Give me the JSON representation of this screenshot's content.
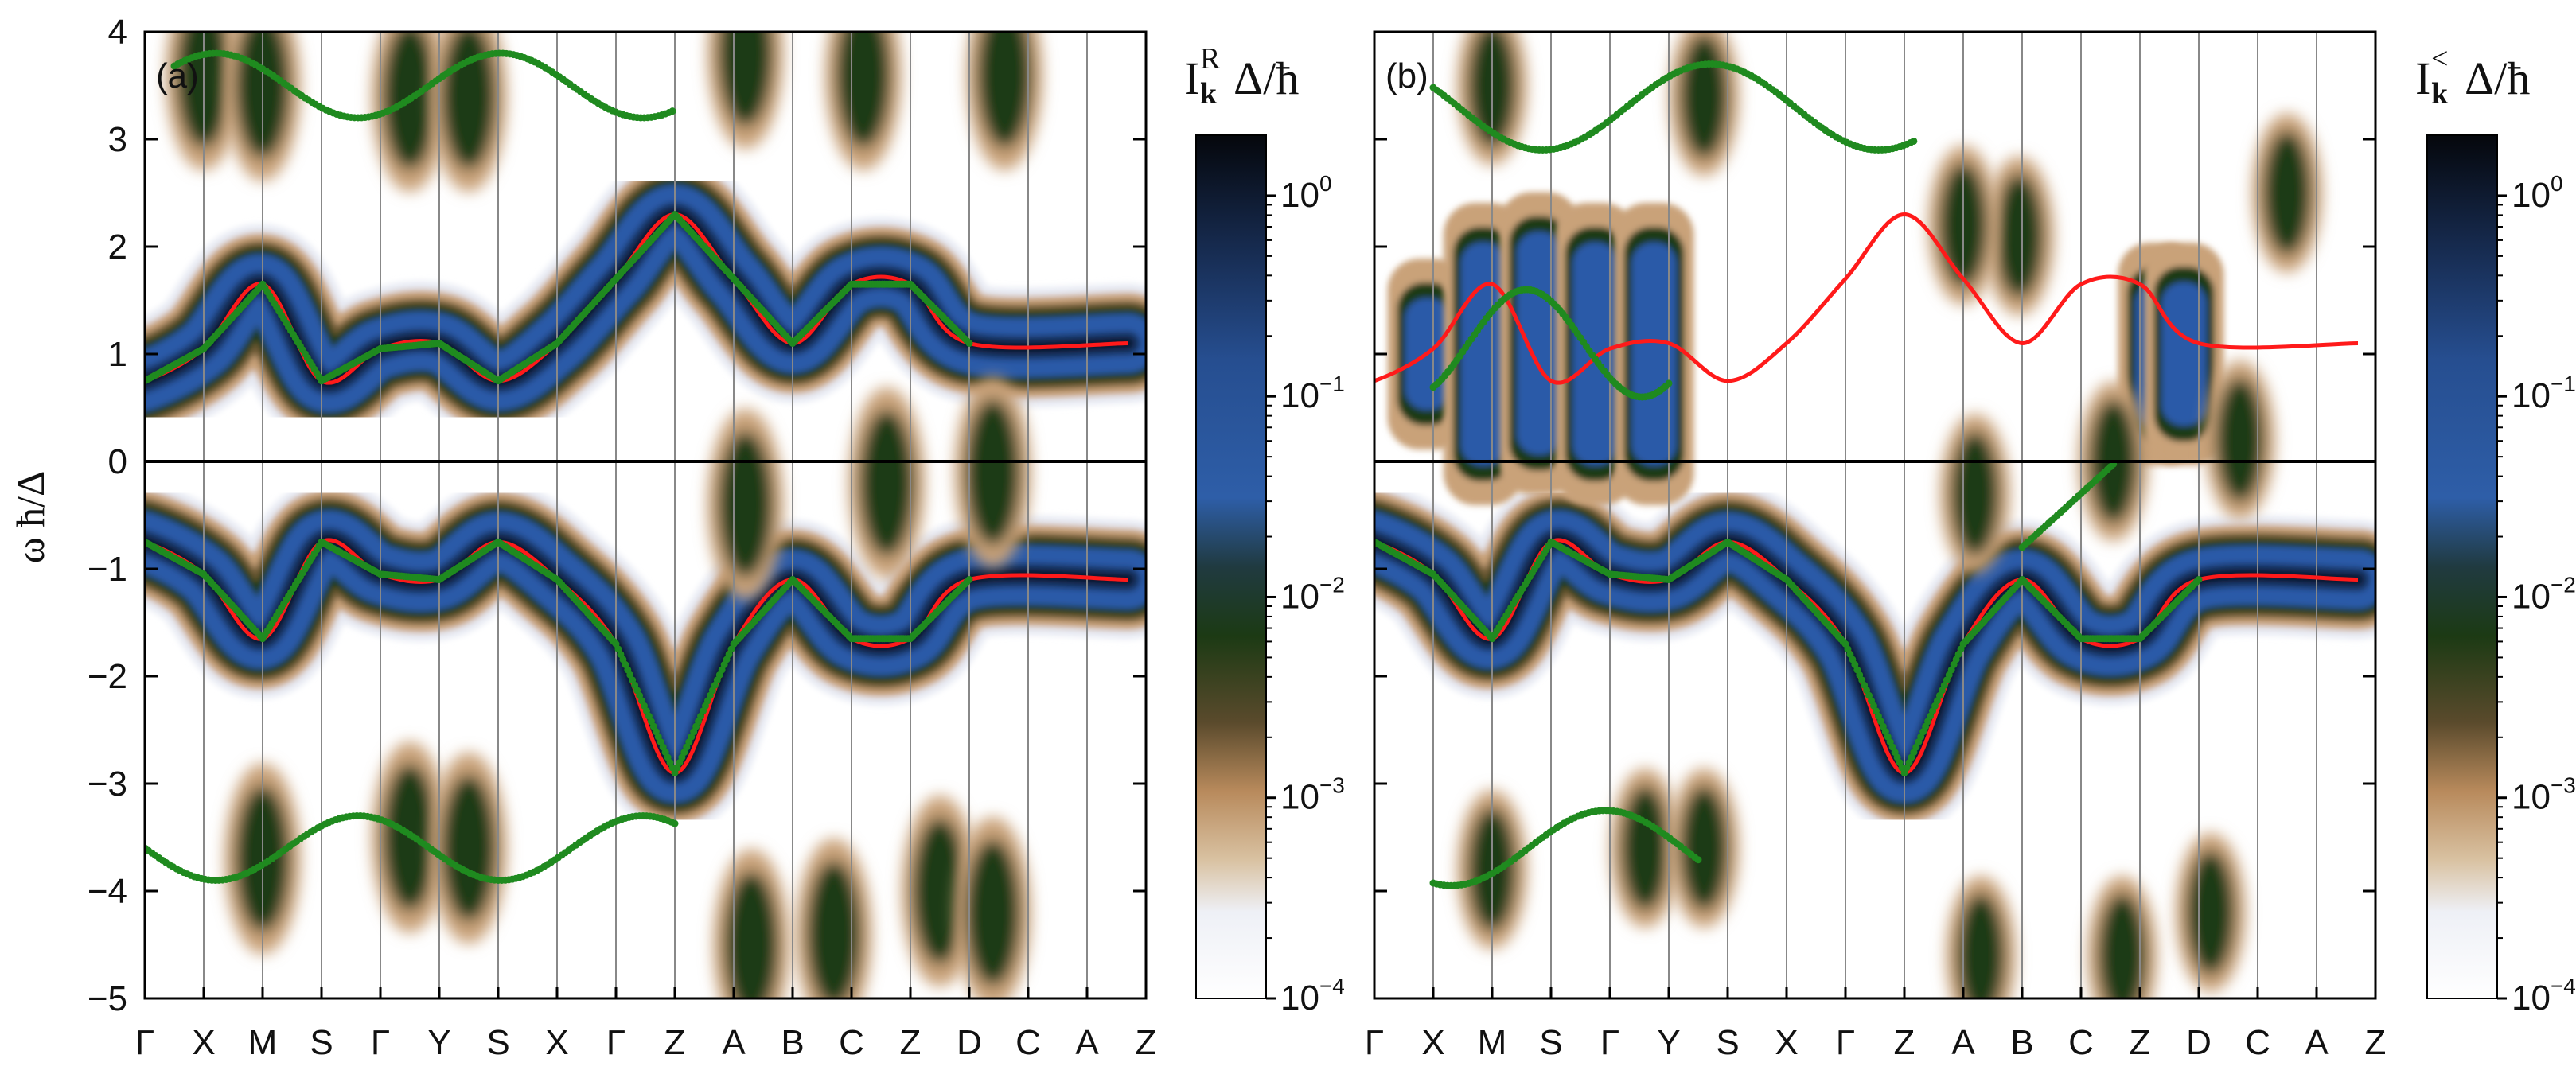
{
  "chart_data": {
    "type": "heatmap",
    "ylabel": "ω ħ/Δ",
    "ylim": [
      -5,
      4
    ],
    "yticks": [
      "4",
      "3",
      "2",
      "1",
      "0",
      "-1",
      "-2",
      "-3",
      "-4",
      "-5"
    ],
    "kpath": [
      "Γ",
      "X",
      "M",
      "S",
      "Γ",
      "Y",
      "S",
      "X",
      "Γ",
      "Z",
      "A",
      "B",
      "C",
      "Z",
      "D",
      "C",
      "A",
      "Z"
    ],
    "panels": [
      {
        "id": "a",
        "label": "(a)",
        "colorbar_title_main": "I",
        "colorbar_title_sub": "k",
        "colorbar_title_sup": "R",
        "colorbar_title_tail": "Δ/ħ",
        "zlim": [
          0.0001,
          2
        ],
        "zscale": "log",
        "colorbar_ticks": [
          {
            "mant": "10",
            "exp": "0",
            "value": 1
          },
          {
            "mant": "10",
            "exp": "-1",
            "value": 0.1
          },
          {
            "mant": "10",
            "exp": "-2",
            "value": 0.01
          },
          {
            "mant": "10",
            "exp": "-3",
            "value": 0.001
          },
          {
            "mant": "10",
            "exp": "-4",
            "value": 0.0001
          }
        ],
        "red_bands": [
          [
            0.75,
            1.05,
            1.65,
            0.75,
            1.05,
            1.1,
            0.75,
            1.1,
            1.7,
            2.3,
            1.7,
            1.1,
            1.65,
            1.65,
            1.1
          ],
          [
            -0.75,
            -1.05,
            -1.65,
            -0.75,
            -1.05,
            -1.1,
            -0.75,
            -1.1,
            -1.7,
            -2.9,
            -1.7,
            -1.1,
            -1.65,
            -1.65,
            -1.1
          ]
        ]
      },
      {
        "id": "b",
        "label": "(b)",
        "colorbar_title_main": "I",
        "colorbar_title_sub": "k",
        "colorbar_title_sup": "<",
        "colorbar_title_tail": "Δ/ħ",
        "zlim": [
          0.0001,
          2
        ],
        "zscale": "log",
        "colorbar_ticks": [
          {
            "mant": "10",
            "exp": "0",
            "value": 1
          },
          {
            "mant": "10",
            "exp": "-1",
            "value": 0.1
          },
          {
            "mant": "10",
            "exp": "-2",
            "value": 0.01
          },
          {
            "mant": "10",
            "exp": "-3",
            "value": 0.001
          },
          {
            "mant": "10",
            "exp": "-4",
            "value": 0.0001
          }
        ],
        "red_bands": [
          [
            0.75,
            1.05,
            1.65,
            0.75,
            1.05,
            1.1,
            0.75,
            1.1,
            1.7,
            2.3,
            1.7,
            1.1,
            1.65,
            1.65,
            1.1
          ],
          [
            -0.75,
            -1.05,
            -1.65,
            -0.75,
            -1.05,
            -1.1,
            -0.75,
            -1.1,
            -1.7,
            -2.9,
            -1.7,
            -1.1,
            -1.65,
            -1.65,
            -1.1
          ]
        ]
      }
    ],
    "band_colors": {
      "peak": "#0a0f1e",
      "blue": "#2b5aa8",
      "green": "#1e3a12",
      "tan": "#c9a279",
      "fade": "#e4e8f2",
      "red_line": "#ff1a1a",
      "green_dots": "#1f8a1f",
      "zero_line": "#000000",
      "grid_line": "#888888"
    }
  }
}
